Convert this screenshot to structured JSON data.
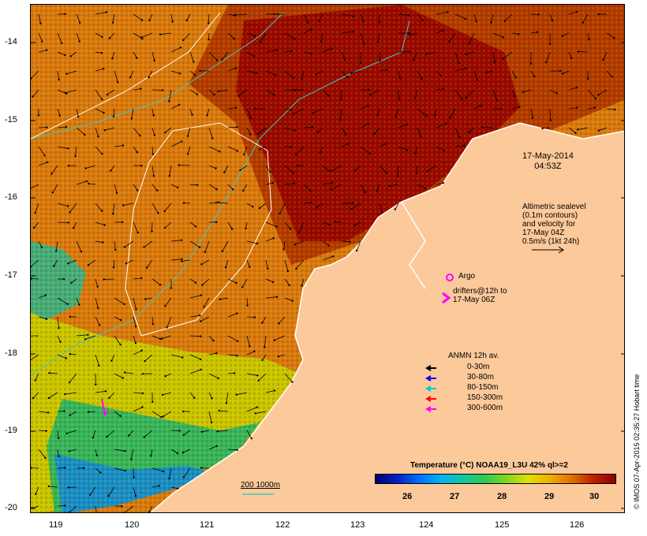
{
  "map": {
    "latitude_labels": [
      "-14",
      "-15",
      "-16",
      "-17",
      "-18",
      "-19",
      "-20"
    ],
    "longitude_labels": [
      "119",
      "120",
      "121",
      "122",
      "123",
      "124",
      "125",
      "126"
    ],
    "date_line1": "17-May-2014",
    "date_line2": "04:53Z",
    "altimetry_lines": [
      "Altimetric sealevel",
      "(0.1m contours)",
      "and velocity for",
      "17-May 04Z",
      "0.5m/s (1kt 24h)"
    ],
    "argo_label": "Argo",
    "drifters_line1": "drifters@12h to",
    "drifters_line2": "17-May 06Z",
    "scale_label": "200  1000m",
    "colors": {
      "sea_warm": "#b04000",
      "sea_hot": "#9a0a00",
      "sea_mid": "#e08a10",
      "sea_cool": "#d8d800",
      "sea_cold": "#30c070",
      "land": "#fcc99a",
      "coast": "#ffffff",
      "contour": "#ffffff",
      "bathymetry": "#40c8c8"
    }
  },
  "legend": {
    "title": "ANMN 12h av.",
    "items": [
      {
        "label": "0-30m",
        "color": "#000000"
      },
      {
        "label": "30-80m",
        "color": "#0000ff"
      },
      {
        "label": "80-150m",
        "color": "#00c8c8"
      },
      {
        "label": "150-300m",
        "color": "#ff0000"
      },
      {
        "label": "300-600m",
        "color": "#ff00ff"
      }
    ]
  },
  "colorbar": {
    "title": "Temperature (°C) NOAA19_L3U 42% ql>=2",
    "ticks": [
      "26",
      "27",
      "28",
      "29",
      "30"
    ]
  },
  "credit": "© IMOS 07-Apr-2015 02:35:27 Hobart time"
}
